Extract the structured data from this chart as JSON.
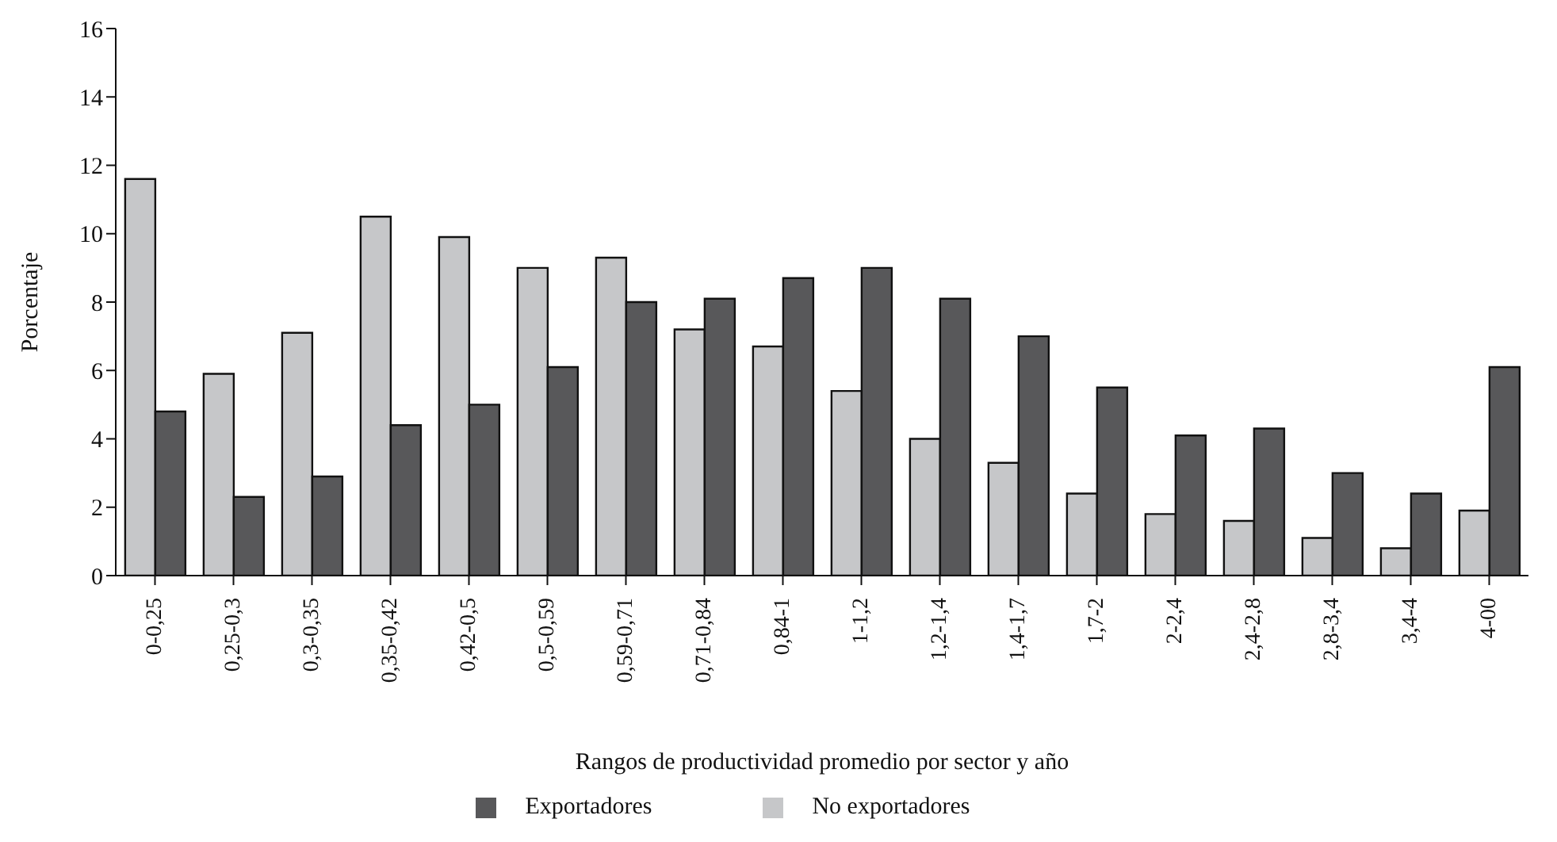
{
  "chart_data": {
    "type": "bar",
    "xlabel": "Rangos de productividad promedio por sector y año",
    "ylabel": "Porcentaje",
    "categories": [
      "0-0,25",
      "0,25-0,3",
      "0,3-0,35",
      "0,35-0,42",
      "0,42-0,5",
      "0,5-0,59",
      "0,59-0,71",
      "0,71-0,84",
      "0,84-1",
      "1-1,2",
      "1,2-1,4",
      "1,4-1,7",
      "1,7-2",
      "2-2,4",
      "2,4-2,8",
      "2,8-3,4",
      "3,4-4",
      "4-00"
    ],
    "series": [
      {
        "name": "No exportadores",
        "color": "#c6c7c9",
        "values": [
          11.6,
          5.9,
          7.1,
          10.5,
          9.9,
          9.0,
          9.3,
          7.2,
          6.7,
          5.4,
          4.0,
          3.3,
          2.4,
          1.8,
          1.6,
          1.1,
          0.8,
          1.9
        ]
      },
      {
        "name": "Exportadores",
        "color": "#58585a",
        "values": [
          4.8,
          2.3,
          2.9,
          4.4,
          5.0,
          6.1,
          8.0,
          8.1,
          8.7,
          9.0,
          8.1,
          7.0,
          5.5,
          4.1,
          4.3,
          3.0,
          2.4,
          6.1
        ]
      }
    ],
    "ylim": [
      0,
      16
    ],
    "yticks": [
      0,
      2,
      4,
      6,
      8,
      10,
      12,
      14,
      16
    ],
    "grid": false,
    "legend": "bottom"
  }
}
